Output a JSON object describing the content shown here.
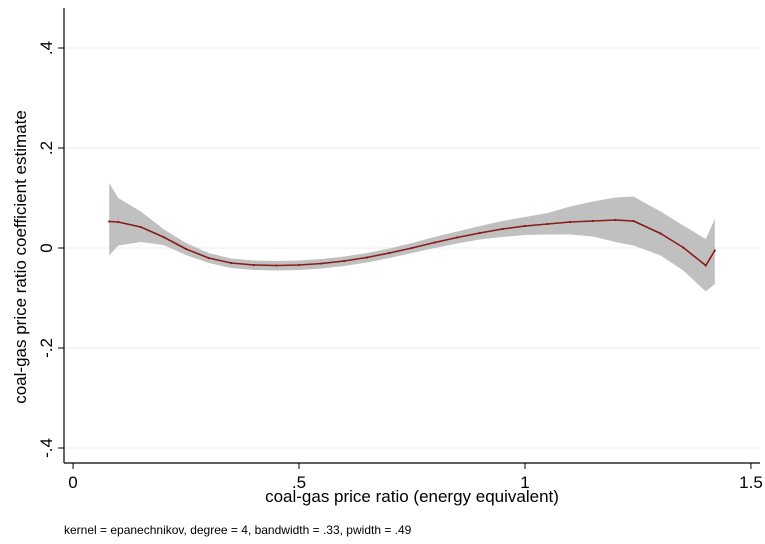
{
  "chart_data": {
    "type": "line",
    "title": "",
    "xlabel": "coal-gas price ratio (energy equivalent)",
    "ylabel": "coal-gas price ratio coefficient estimate",
    "note": "kernel = epanechnikov, degree = 4, bandwidth = .33, pwidth = .49",
    "xlim": [
      -0.02,
      1.52
    ],
    "ylim": [
      -0.43,
      0.48
    ],
    "x_ticks": [
      {
        "value": 0,
        "label": "0"
      },
      {
        "value": 0.5,
        "label": ".5"
      },
      {
        "value": 1,
        "label": "1"
      },
      {
        "value": 1.5,
        "label": "1.5"
      }
    ],
    "y_ticks": [
      {
        "value": -0.4,
        "label": "-.4"
      },
      {
        "value": -0.2,
        "label": "-.2"
      },
      {
        "value": 0,
        "label": "0"
      },
      {
        "value": 0.2,
        "label": ".2"
      },
      {
        "value": 0.4,
        "label": ".4"
      }
    ],
    "grid": true,
    "colors": {
      "line": "#8b1a1a",
      "band": "#c0c0c0",
      "grid": "#ebebeb"
    },
    "series": [
      {
        "x": [
          0.08,
          0.1,
          0.15,
          0.2,
          0.25,
          0.3,
          0.35,
          0.4,
          0.45,
          0.5,
          0.55,
          0.6,
          0.65,
          0.7,
          0.75,
          0.8,
          0.85,
          0.9,
          0.95,
          1.0,
          1.05,
          1.1,
          1.15,
          1.2,
          1.24,
          1.3,
          1.35,
          1.4,
          1.42
        ],
        "y": [
          0.053,
          0.052,
          0.042,
          0.022,
          -0.002,
          -0.02,
          -0.03,
          -0.034,
          -0.035,
          -0.034,
          -0.031,
          -0.026,
          -0.019,
          -0.01,
          0.0,
          0.011,
          0.021,
          0.03,
          0.038,
          0.044,
          0.048,
          0.052,
          0.054,
          0.056,
          0.054,
          0.029,
          0.001,
          -0.035,
          -0.005
        ],
        "upper": [
          0.13,
          0.1,
          0.073,
          0.038,
          0.01,
          -0.01,
          -0.021,
          -0.025,
          -0.026,
          -0.025,
          -0.022,
          -0.017,
          -0.01,
          -0.001,
          0.01,
          0.022,
          0.033,
          0.044,
          0.054,
          0.062,
          0.07,
          0.083,
          0.093,
          0.101,
          0.103,
          0.073,
          0.045,
          0.018,
          0.058
        ],
        "lower": [
          -0.015,
          0.005,
          0.012,
          0.006,
          -0.014,
          -0.03,
          -0.04,
          -0.044,
          -0.045,
          -0.044,
          -0.041,
          -0.036,
          -0.029,
          -0.02,
          -0.01,
          0.0,
          0.009,
          0.017,
          0.022,
          0.026,
          0.027,
          0.027,
          0.023,
          0.012,
          0.005,
          -0.015,
          -0.045,
          -0.087,
          -0.072
        ]
      }
    ]
  }
}
